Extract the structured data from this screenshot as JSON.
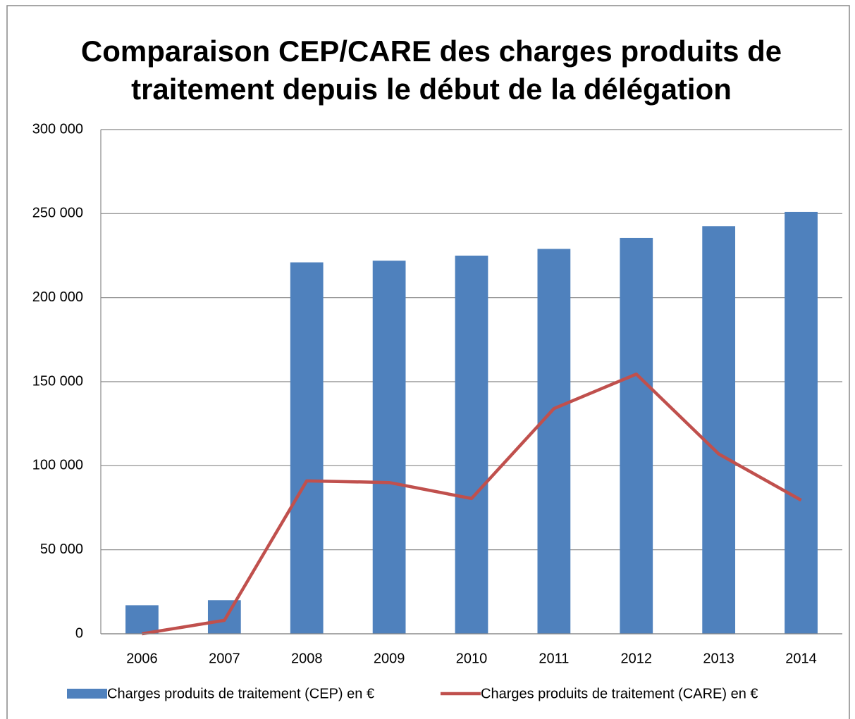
{
  "chart_data": {
    "type": "bar",
    "title": [
      "Comparaison CEP/CARE des charges produits de",
      "traitement depuis le début de la délégation"
    ],
    "categories": [
      "2006",
      "2007",
      "2008",
      "2009",
      "2010",
      "2011",
      "2012",
      "2013",
      "2014"
    ],
    "series": [
      {
        "name": "Charges produits de traitement (CEP) en €",
        "type": "bar",
        "color": "#4f81bd",
        "values": [
          17000,
          20000,
          221000,
          222000,
          225000,
          229000,
          235500,
          242500,
          251000
        ]
      },
      {
        "name": "Charges produits de traitement (CARE) en €",
        "type": "line",
        "color": "#c0504d",
        "values": [
          0,
          8000,
          91000,
          90000,
          80500,
          134000,
          154500,
          107000,
          79500
        ]
      }
    ],
    "ylim": [
      0,
      300000
    ],
    "yticks": [
      0,
      {
        "value": 50000,
        "label": "50 000"
      },
      {
        "value": 100000,
        "label": "100 000"
      },
      {
        "value": 150000,
        "label": "150 000"
      },
      {
        "value": 200000,
        "label": "200 000"
      },
      {
        "value": 250000,
        "label": "250 000"
      },
      {
        "value": 300000,
        "label": "300 000"
      }
    ],
    "grid": true,
    "legend": "bottom"
  }
}
